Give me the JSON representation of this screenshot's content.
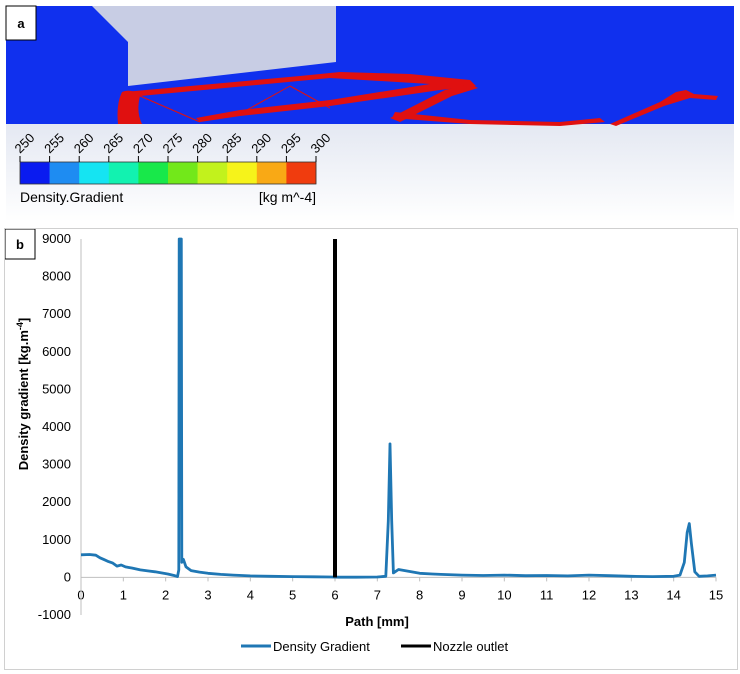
{
  "panel_a": {
    "label": "a",
    "colorbar": {
      "title": "Density.Gradient",
      "unit": "[kg m^-4]",
      "ticks": [
        "250",
        "255",
        "260",
        "265",
        "270",
        "275",
        "280",
        "285",
        "290",
        "295",
        "300"
      ],
      "colors": [
        "#0a1bf0",
        "#1e8cf2",
        "#15e4f2",
        "#12f2b0",
        "#18e84a",
        "#72e81a",
        "#c2f21c",
        "#f6f31a",
        "#f9a915",
        "#f03c0e"
      ]
    },
    "colors": {
      "field": "#1030ee",
      "geometry": "#c8cde4",
      "shock": "#e01010"
    }
  },
  "chart_data": {
    "type": "line",
    "label": "b",
    "xlabel": "Path [mm]",
    "ylabel": "Density gradient [kg.m",
    "ylabel_sup": "-4",
    "ylabel_end": "]",
    "xlim": [
      0,
      15
    ],
    "ylim": [
      -1000,
      9000
    ],
    "x_ticks": [
      0,
      1,
      2,
      3,
      4,
      5,
      6,
      7,
      8,
      9,
      10,
      11,
      12,
      13,
      14,
      15
    ],
    "y_ticks": [
      -1000,
      0,
      1000,
      2000,
      3000,
      4000,
      5000,
      6000,
      7000,
      8000,
      9000
    ],
    "grid": false,
    "legend_position": "bottom-center",
    "series": [
      {
        "name": "Density Gradient",
        "color": "#1f77b4",
        "points": [
          [
            0,
            600
          ],
          [
            0.2,
            610
          ],
          [
            0.35,
            590
          ],
          [
            0.45,
            520
          ],
          [
            0.55,
            470
          ],
          [
            0.65,
            420
          ],
          [
            0.75,
            380
          ],
          [
            0.85,
            300
          ],
          [
            0.95,
            330
          ],
          [
            1.05,
            280
          ],
          [
            1.2,
            250
          ],
          [
            1.4,
            200
          ],
          [
            1.6,
            170
          ],
          [
            1.75,
            150
          ],
          [
            1.9,
            120
          ],
          [
            2.05,
            90
          ],
          [
            2.2,
            50
          ],
          [
            2.28,
            20
          ],
          [
            2.31,
            200
          ],
          [
            2.32,
            9000
          ],
          [
            2.37,
            9000
          ],
          [
            2.38,
            400
          ],
          [
            2.42,
            480
          ],
          [
            2.48,
            280
          ],
          [
            2.6,
            180
          ],
          [
            2.8,
            140
          ],
          [
            3.0,
            110
          ],
          [
            3.3,
            80
          ],
          [
            3.6,
            60
          ],
          [
            4.0,
            40
          ],
          [
            4.5,
            30
          ],
          [
            5.0,
            20
          ],
          [
            5.5,
            15
          ],
          [
            5.9,
            10
          ],
          [
            6.1,
            5
          ],
          [
            6.5,
            5
          ],
          [
            7.0,
            10
          ],
          [
            7.2,
            30
          ],
          [
            7.26,
            1500
          ],
          [
            7.3,
            3550
          ],
          [
            7.34,
            1500
          ],
          [
            7.38,
            120
          ],
          [
            7.5,
            210
          ],
          [
            7.7,
            170
          ],
          [
            8.0,
            110
          ],
          [
            8.3,
            90
          ],
          [
            8.5,
            80
          ],
          [
            9.0,
            60
          ],
          [
            9.5,
            50
          ],
          [
            10.0,
            60
          ],
          [
            10.5,
            45
          ],
          [
            11.0,
            50
          ],
          [
            11.5,
            40
          ],
          [
            12.0,
            60
          ],
          [
            12.5,
            45
          ],
          [
            13.0,
            30
          ],
          [
            13.5,
            20
          ],
          [
            14.0,
            30
          ],
          [
            14.15,
            60
          ],
          [
            14.25,
            400
          ],
          [
            14.32,
            1200
          ],
          [
            14.37,
            1430
          ],
          [
            14.42,
            900
          ],
          [
            14.5,
            150
          ],
          [
            14.6,
            30
          ],
          [
            14.8,
            40
          ],
          [
            15.0,
            60
          ]
        ]
      },
      {
        "name": "Nozzle outlet",
        "color": "#000000",
        "points": [
          [
            6,
            0
          ],
          [
            6,
            9000
          ]
        ]
      }
    ]
  }
}
